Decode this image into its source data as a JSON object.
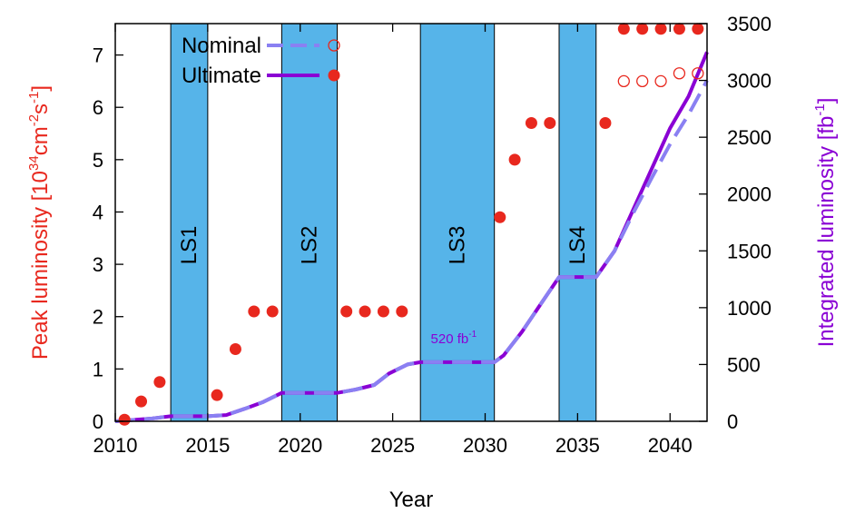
{
  "chart_data": {
    "type": "line",
    "xlabel": "Year",
    "ylabel": "Peak luminosity [10",
    "ylabel_exp1": "34",
    "ylabel_mid": "cm",
    "ylabel_exp2": "-2",
    "ylabel_mid2": "s",
    "ylabel_exp3": "-1",
    "ylabel_end": "]",
    "y2label": "Integrated luminosity [fb",
    "y2label_exp": "-1",
    "y2label_end": "]",
    "xlim": [
      2010,
      2042
    ],
    "ylim": [
      0,
      7.6
    ],
    "y2lim": [
      0,
      3500
    ],
    "x_ticks": [
      "2010",
      "2015",
      "2020",
      "2025",
      "2030",
      "2035",
      "2040"
    ],
    "y_ticks": [
      "0",
      "1",
      "2",
      "3",
      "4",
      "5",
      "6",
      "7"
    ],
    "y2_ticks": [
      "0",
      "500",
      "1000",
      "1500",
      "2000",
      "2500",
      "3000",
      "3500"
    ],
    "colors": {
      "shutdown_fill": "#56b4e9",
      "peak": "#e8281e",
      "nominal": "#8a80f2",
      "ultimate": "#8a00d4"
    },
    "shutdowns": [
      {
        "label": "LS1",
        "start": 2013,
        "end": 2015
      },
      {
        "label": "LS2",
        "start": 2019,
        "end": 2022
      },
      {
        "label": "LS3",
        "start": 2026.5,
        "end": 2030.5
      },
      {
        "label": "LS4",
        "start": 2034,
        "end": 2036
      }
    ],
    "legend": {
      "position": "top-left",
      "entries": [
        {
          "label": "Nominal",
          "series": "nominal"
        },
        {
          "label": "Ultimate",
          "series": "ultimate"
        }
      ]
    },
    "annotation": {
      "text": "520 fb",
      "sup": "-1",
      "x": 2028.3,
      "y2": 560
    },
    "peak_luminosity": {
      "shared": [
        [
          2010.5,
          0.03
        ],
        [
          2011.4,
          0.38
        ],
        [
          2012.4,
          0.75
        ],
        [
          2015.5,
          0.5
        ],
        [
          2016.5,
          1.38
        ],
        [
          2017.5,
          2.1
        ],
        [
          2018.5,
          2.1
        ],
        [
          2022.5,
          2.1
        ],
        [
          2023.5,
          2.1
        ],
        [
          2024.5,
          2.1
        ],
        [
          2025.5,
          2.1
        ],
        [
          2030.8,
          3.9
        ],
        [
          2031.6,
          5.0
        ],
        [
          2032.5,
          5.7
        ],
        [
          2033.5,
          5.7
        ],
        [
          2036.5,
          5.7
        ]
      ],
      "nominal": [
        [
          2037.5,
          6.5
        ],
        [
          2038.5,
          6.5
        ],
        [
          2039.5,
          6.5
        ],
        [
          2040.5,
          6.65
        ],
        [
          2041.5,
          6.65
        ]
      ],
      "ultimate": [
        [
          2037.5,
          7.5
        ],
        [
          2038.5,
          7.5
        ],
        [
          2039.5,
          7.5
        ],
        [
          2040.5,
          7.5
        ],
        [
          2041.5,
          7.5
        ]
      ]
    },
    "series": [
      {
        "name": "Ultimate",
        "axis": "right",
        "x": [
          2010,
          2012,
          2013,
          2015,
          2016,
          2017,
          2018,
          2019,
          2022,
          2023,
          2024,
          2024.8,
          2025.8,
          2026.5,
          2030.5,
          2031,
          2032,
          2033,
          2034,
          2036,
          2037,
          2038,
          2039,
          2040,
          2041,
          2042
        ],
        "values": [
          0,
          25,
          45,
          45,
          55,
          110,
          170,
          250,
          250,
          280,
          320,
          420,
          500,
          520,
          520,
          580,
          790,
          1030,
          1270,
          1270,
          1500,
          1860,
          2220,
          2580,
          2860,
          3250
        ]
      },
      {
        "name": "Nominal",
        "axis": "right",
        "x": [
          2010,
          2012,
          2013,
          2015,
          2016,
          2017,
          2018,
          2019,
          2022,
          2023,
          2024,
          2024.8,
          2025.8,
          2026.5,
          2030.5,
          2031,
          2032,
          2033,
          2034,
          2036,
          2037,
          2038,
          2039,
          2040,
          2041,
          2042
        ],
        "values": [
          0,
          25,
          45,
          45,
          55,
          110,
          170,
          250,
          250,
          280,
          320,
          420,
          500,
          520,
          520,
          580,
          790,
          1030,
          1270,
          1270,
          1500,
          1830,
          2140,
          2440,
          2700,
          3000
        ]
      }
    ]
  }
}
